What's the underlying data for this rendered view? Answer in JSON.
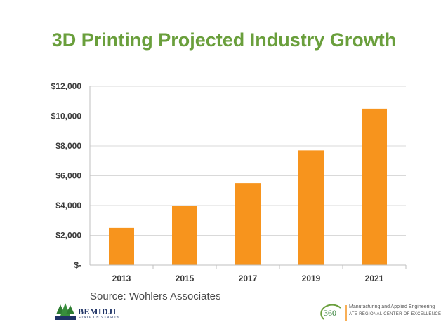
{
  "slide": {
    "title": "3D Printing Projected Industry Growth",
    "source": "Source: Wohlers Associates"
  },
  "logos": {
    "bemidji": {
      "name": "BEMIDJI",
      "subtitle": "STATE UNIVERSITY"
    },
    "center360": {
      "mark": "360",
      "line1": "Manufacturing and Applied Engineering",
      "line2": "ATE REGIONAL CENTER OF EXCELLENCE"
    }
  },
  "colors": {
    "bar": "#f7941d",
    "title": "#6a9f3c",
    "grid": "#d9d9d9"
  },
  "chart_data": {
    "type": "bar",
    "title": "3D Printing Projected Industry Growth",
    "categories": [
      "2013",
      "2015",
      "2017",
      "2019",
      "2021"
    ],
    "values": [
      2500,
      4000,
      5500,
      7700,
      10500
    ],
    "ylim": [
      0,
      12000
    ],
    "yticks": [
      0,
      2000,
      4000,
      6000,
      8000,
      10000,
      12000
    ],
    "ytick_labels": [
      "$-",
      "$2,000",
      "$4,000",
      "$6,000",
      "$8,000",
      "$10,000",
      "$12,000"
    ],
    "xlabel": "",
    "ylabel": "",
    "grid": true
  }
}
